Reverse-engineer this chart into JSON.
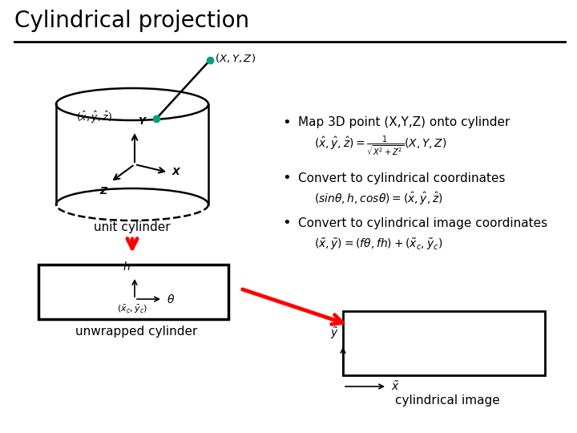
{
  "title": "Cylindrical projection",
  "background_color": "#ffffff",
  "title_fontsize": 20,
  "bullet1": "Map 3D point (X,Y,Z) onto cylinder",
  "eq1": "$(\\hat{x}, \\hat{y}, \\hat{z}) = \\frac{1}{\\sqrt{X^2+Z^2}}(X, Y, Z)$",
  "bullet2": "Convert to cylindrical coordinates",
  "eq2": "$(sin\\theta, h, cos\\theta) = (\\hat{x}, \\hat{y}, \\hat{z})$",
  "bullet3": "Convert to cylindrical image coordinates",
  "eq3": "$(\\tilde{x}, \\tilde{y}) = (f\\theta, fh) + (\\tilde{x}_c, \\tilde{y}_c)$",
  "label_unit_cylinder": "unit cylinder",
  "label_unwrapped": "unwrapped cylinder",
  "label_cylindrical_image": "cylindrical image"
}
